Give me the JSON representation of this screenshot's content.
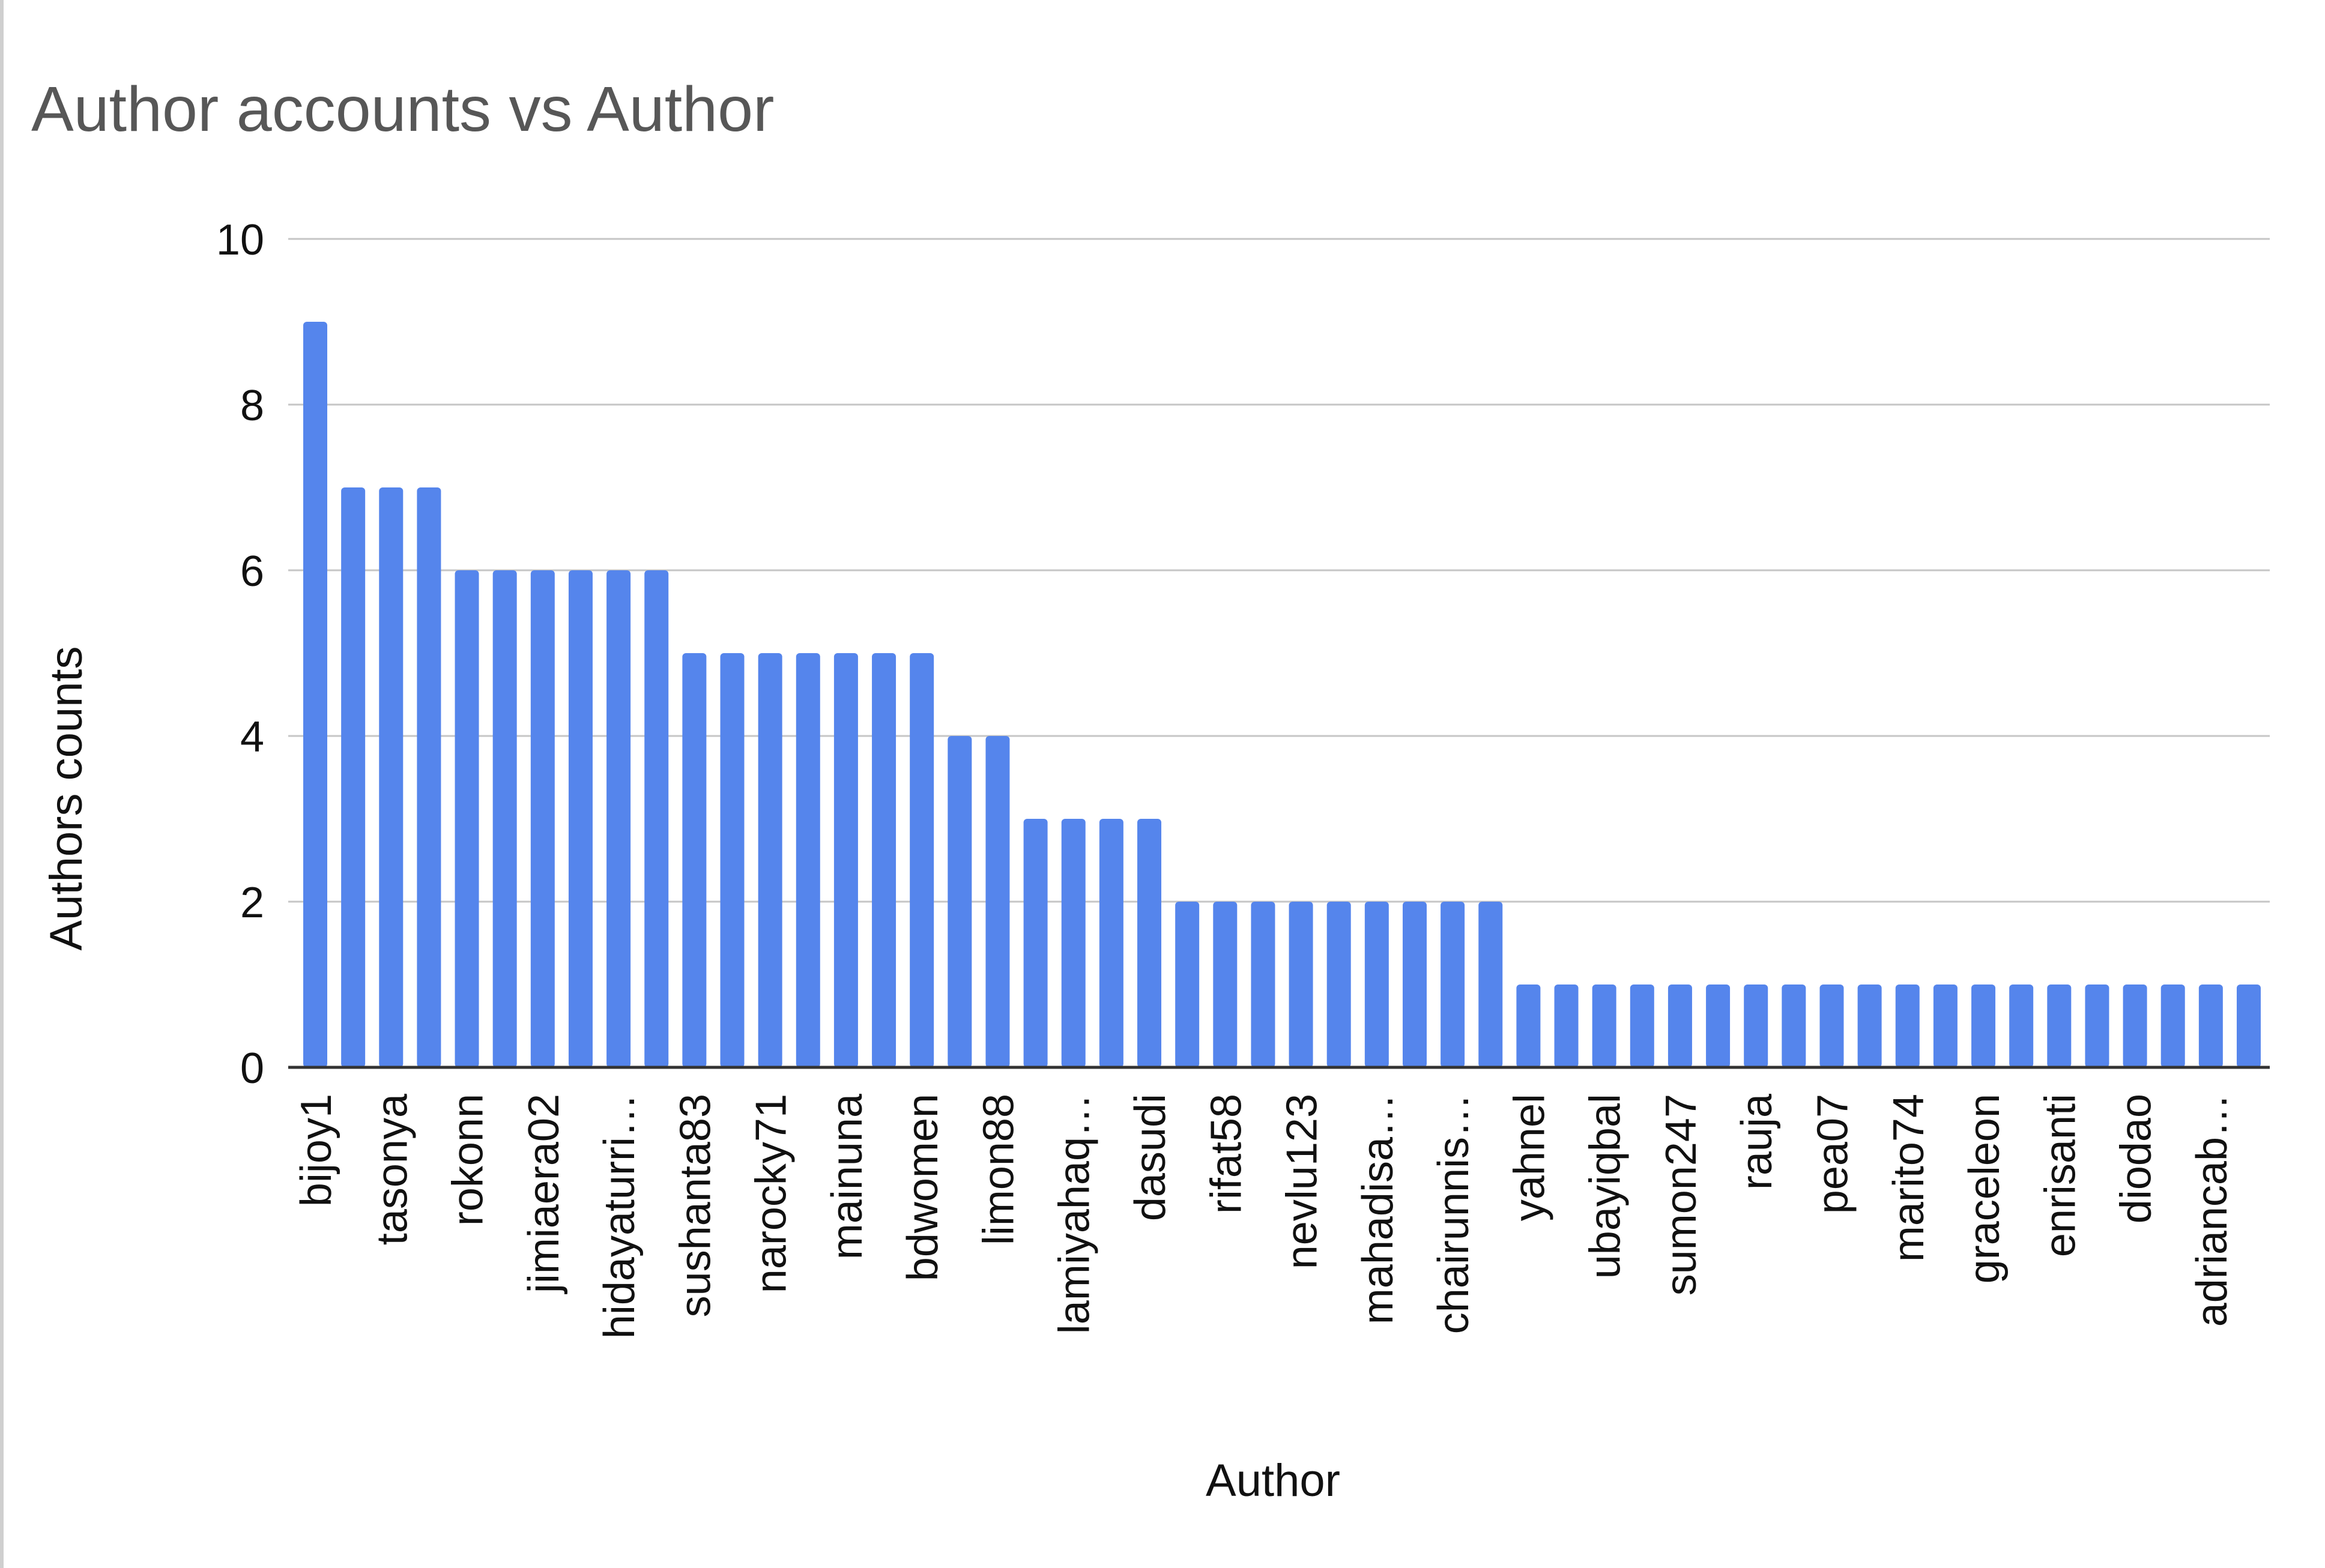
{
  "chart_data": {
    "type": "bar",
    "title": "Author accounts vs Author",
    "xlabel": "Author",
    "ylabel": "Authors counts",
    "ylim": [
      0,
      10
    ],
    "yticks": [
      0,
      2,
      4,
      6,
      8,
      10
    ],
    "grid": true,
    "legend": "none",
    "bar_color": "#5585ec",
    "categories": [
      "bijoy1",
      "",
      "tasonya",
      "",
      "rokonn",
      "",
      "jimiaera02",
      "",
      "hidayaturri…",
      "",
      "sushanta83",
      "",
      "narocky71",
      "",
      "mainuna",
      "",
      "bdwomen",
      "",
      "limon88",
      "",
      "lamiyahaq…",
      "",
      "dasudi",
      "",
      "rifat58",
      "",
      "nevlu123",
      "",
      "mahadisa…",
      "",
      "chairunnis…",
      "",
      "yahnel",
      "",
      "ubayiqbal",
      "",
      "sumon247",
      "",
      "rauja",
      "",
      "pea07",
      "",
      "marito74",
      "",
      "graceleon",
      "",
      "enrisanti",
      "",
      "diodao",
      "",
      "adriancab…",
      ""
    ],
    "values": [
      9,
      7,
      7,
      7,
      6,
      6,
      6,
      6,
      6,
      6,
      5,
      5,
      5,
      5,
      5,
      5,
      5,
      4,
      4,
      3,
      3,
      3,
      3,
      2,
      2,
      2,
      2,
      2,
      2,
      2,
      2,
      2,
      1,
      1,
      1,
      1,
      1,
      1,
      1,
      1,
      1,
      1,
      1,
      1,
      1,
      1,
      1,
      1,
      1,
      1,
      1,
      1
    ]
  }
}
